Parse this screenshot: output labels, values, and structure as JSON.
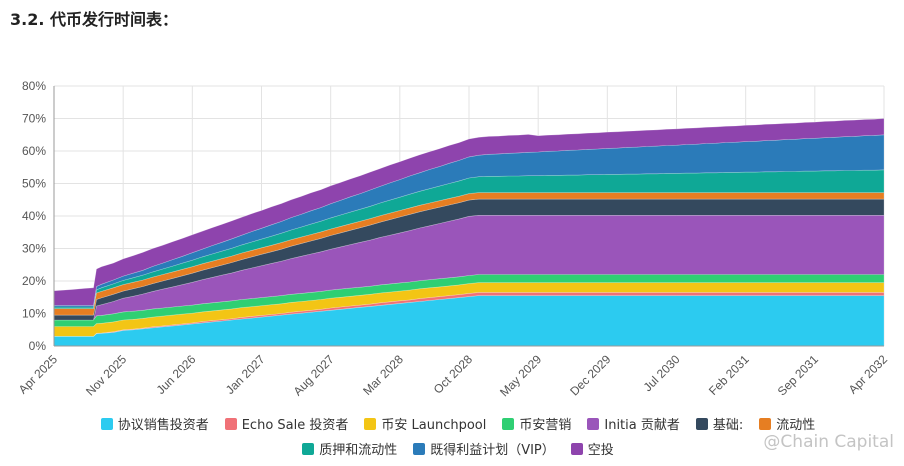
{
  "heading": "3.2. 代币发行时间表：",
  "watermark": "@Chain Capital",
  "colors": {
    "grid": "#e3e3e3",
    "axis": "#9a9a9a"
  },
  "chart_data": {
    "type": "area",
    "stacked": true,
    "x_tick_labels": [
      "Apr 2025",
      "Nov 2025",
      "Jun 2026",
      "Jan 2027",
      "Aug 2027",
      "Mar 2028",
      "Oct 2028",
      "May 2029",
      "Dec 2029",
      "Jul 2030",
      "Feb 2031",
      "Sep 2031",
      "Apr 2032"
    ],
    "y_tick_labels": [
      "0%",
      "10%",
      "20%",
      "30%",
      "40%",
      "50%",
      "60%",
      "70%",
      "80%"
    ],
    "ylim": [
      0,
      80
    ],
    "grid": true,
    "legend_position": "bottom",
    "x": [
      0,
      1,
      2,
      3,
      4,
      4.3,
      4.8,
      6,
      7,
      8,
      9,
      10,
      11,
      12,
      13,
      14,
      15,
      16,
      17,
      18,
      19,
      20,
      21,
      22,
      23,
      24,
      25,
      26,
      27,
      28,
      29,
      30,
      31,
      32,
      33,
      34,
      35,
      36,
      37,
      38,
      39,
      40,
      41,
      42,
      43,
      44,
      45,
      46,
      47,
      48,
      49,
      50,
      51,
      52,
      53,
      54,
      55,
      56,
      57,
      58,
      59,
      60,
      61,
      62,
      63,
      64,
      65,
      66,
      67,
      68,
      69,
      70,
      71,
      72,
      73,
      74,
      75,
      76,
      77,
      78,
      79,
      80,
      81,
      82,
      83,
      84
    ],
    "series": [
      {
        "name": "协议销售投资者",
        "color": "#2ccbf0",
        "values": [
          3.0,
          3.0,
          3.0,
          3.0,
          3.0,
          3.8,
          3.9,
          4.2,
          4.8,
          5.0,
          5.3,
          5.6,
          5.9,
          6.2,
          6.5,
          6.8,
          7.1,
          7.4,
          7.7,
          8.0,
          8.3,
          8.6,
          8.9,
          9.2,
          9.5,
          9.8,
          10.1,
          10.4,
          10.7,
          11.0,
          11.3,
          11.6,
          11.9,
          12.2,
          12.5,
          12.8,
          13.1,
          13.4,
          13.7,
          14.0,
          14.3,
          14.6,
          14.9,
          15.2,
          15.5,
          15.5,
          15.5,
          15.5,
          15.5,
          15.5,
          15.5,
          15.5,
          15.5,
          15.5,
          15.5,
          15.5,
          15.5,
          15.5,
          15.5,
          15.5,
          15.5,
          15.5,
          15.5,
          15.5,
          15.5,
          15.5,
          15.5,
          15.5,
          15.5,
          15.5,
          15.5,
          15.5,
          15.5,
          15.5,
          15.5,
          15.5,
          15.5,
          15.5,
          15.5,
          15.5,
          15.5,
          15.5,
          15.5,
          15.5,
          15.5,
          15.5
        ]
      },
      {
        "name": "Echo Sale 投资者",
        "color": "#f07177",
        "values": [
          0.0,
          0.0,
          0.0,
          0.0,
          0.0,
          0.1,
          0.1,
          0.2,
          0.2,
          0.2,
          0.2,
          0.3,
          0.3,
          0.3,
          0.3,
          0.3,
          0.4,
          0.4,
          0.4,
          0.4,
          0.5,
          0.5,
          0.5,
          0.5,
          0.5,
          0.6,
          0.6,
          0.6,
          0.6,
          0.7,
          0.7,
          0.7,
          0.7,
          0.7,
          0.8,
          0.8,
          0.8,
          0.8,
          0.9,
          0.9,
          0.9,
          0.9,
          0.9,
          1.0,
          1.0,
          1.0,
          1.0,
          1.0,
          1.0,
          1.0,
          1.0,
          1.0,
          1.0,
          1.0,
          1.0,
          1.0,
          1.0,
          1.0,
          1.0,
          1.0,
          1.0,
          1.0,
          1.0,
          1.0,
          1.0,
          1.0,
          1.0,
          1.0,
          1.0,
          1.0,
          1.0,
          1.0,
          1.0,
          1.0,
          1.0,
          1.0,
          1.0,
          1.0,
          1.0,
          1.0,
          1.0,
          1.0,
          1.0,
          1.0,
          1.0,
          1.0
        ]
      },
      {
        "name": "币安 Launchpool",
        "color": "#f3c515",
        "values": [
          3.0,
          3.0,
          3.0,
          3.0,
          3.0,
          3.0,
          3.0,
          3.0,
          3.0,
          3.0,
          3.0,
          3.0,
          3.0,
          3.0,
          3.0,
          3.0,
          3.0,
          3.0,
          3.0,
          3.0,
          3.0,
          3.0,
          3.0,
          3.0,
          3.0,
          3.0,
          3.0,
          3.0,
          3.0,
          3.0,
          3.0,
          3.0,
          3.0,
          3.0,
          3.0,
          3.0,
          3.0,
          3.0,
          3.0,
          3.0,
          3.0,
          3.0,
          3.0,
          3.0,
          3.0,
          3.0,
          3.0,
          3.0,
          3.0,
          3.0,
          3.0,
          3.0,
          3.0,
          3.0,
          3.0,
          3.0,
          3.0,
          3.0,
          3.0,
          3.0,
          3.0,
          3.0,
          3.0,
          3.0,
          3.0,
          3.0,
          3.0,
          3.0,
          3.0,
          3.0,
          3.0,
          3.0,
          3.0,
          3.0,
          3.0,
          3.0,
          3.0,
          3.0,
          3.0,
          3.0,
          3.0,
          3.0,
          3.0,
          3.0,
          3.0,
          3.0
        ]
      },
      {
        "name": "币安营销",
        "color": "#2fcf73",
        "values": [
          2.0,
          2.0,
          2.0,
          2.0,
          2.0,
          2.4,
          2.4,
          2.5,
          2.5,
          2.5,
          2.5,
          2.5,
          2.5,
          2.5,
          2.5,
          2.5,
          2.5,
          2.5,
          2.5,
          2.5,
          2.5,
          2.5,
          2.5,
          2.5,
          2.5,
          2.5,
          2.5,
          2.5,
          2.5,
          2.5,
          2.5,
          2.5,
          2.5,
          2.5,
          2.5,
          2.5,
          2.5,
          2.5,
          2.5,
          2.5,
          2.5,
          2.5,
          2.5,
          2.5,
          2.5,
          2.5,
          2.5,
          2.5,
          2.5,
          2.5,
          2.5,
          2.5,
          2.5,
          2.5,
          2.5,
          2.5,
          2.5,
          2.5,
          2.5,
          2.5,
          2.5,
          2.5,
          2.5,
          2.5,
          2.5,
          2.5,
          2.5,
          2.5,
          2.5,
          2.5,
          2.5,
          2.5,
          2.5,
          2.5,
          2.5,
          2.5,
          2.5,
          2.5,
          2.5,
          2.5,
          2.5,
          2.5,
          2.5,
          2.5,
          2.5,
          2.5
        ]
      },
      {
        "name": "Initia 贡献者",
        "color": "#9a55ba",
        "values": [
          0.0,
          0.0,
          0.0,
          0.0,
          0.0,
          3.0,
          3.3,
          3.8,
          4.2,
          4.6,
          5.0,
          5.4,
          5.8,
          6.2,
          6.6,
          7.0,
          7.4,
          7.8,
          8.2,
          8.6,
          9.0,
          9.4,
          9.8,
          10.2,
          10.6,
          11.0,
          11.4,
          11.8,
          12.2,
          12.6,
          13.0,
          13.4,
          13.8,
          14.2,
          14.6,
          15.0,
          15.4,
          15.8,
          16.2,
          16.6,
          17.0,
          17.4,
          17.8,
          18.2,
          18.2,
          18.2,
          18.2,
          18.2,
          18.2,
          18.2,
          18.2,
          18.2,
          18.2,
          18.2,
          18.2,
          18.2,
          18.2,
          18.2,
          18.2,
          18.2,
          18.2,
          18.2,
          18.2,
          18.2,
          18.2,
          18.2,
          18.2,
          18.2,
          18.2,
          18.2,
          18.2,
          18.2,
          18.2,
          18.2,
          18.2,
          18.2,
          18.2,
          18.2,
          18.2,
          18.2,
          18.2,
          18.2,
          18.2,
          18.2,
          18.2,
          18.2
        ]
      },
      {
        "name": "基础:",
        "color": "#34495e",
        "values": [
          1.5,
          1.5,
          1.5,
          1.5,
          1.5,
          2.0,
          2.1,
          2.2,
          2.2,
          2.3,
          2.3,
          2.4,
          2.5,
          2.6,
          2.7,
          2.8,
          2.9,
          3.0,
          3.1,
          3.2,
          3.3,
          3.4,
          3.5,
          3.6,
          3.7,
          3.8,
          3.9,
          4.0,
          4.1,
          4.2,
          4.3,
          4.4,
          4.5,
          4.6,
          4.7,
          4.8,
          4.9,
          5.0,
          5.0,
          5.0,
          5.0,
          5.0,
          5.0,
          5.0,
          5.0,
          5.0,
          5.0,
          5.0,
          5.0,
          5.0,
          5.0,
          5.0,
          5.0,
          5.0,
          5.0,
          5.0,
          5.0,
          5.0,
          5.0,
          5.0,
          5.0,
          5.0,
          5.0,
          5.0,
          5.0,
          5.0,
          5.0,
          5.0,
          5.0,
          5.0,
          5.0,
          5.0,
          5.0,
          5.0,
          5.0,
          5.0,
          5.0,
          5.0,
          5.0,
          5.0,
          5.0,
          5.0,
          5.0,
          5.0,
          5.0,
          5.0
        ]
      },
      {
        "name": "流动性",
        "color": "#e67e22",
        "values": [
          2.0,
          2.0,
          2.0,
          2.0,
          2.0,
          2.0,
          2.0,
          2.0,
          2.0,
          2.0,
          2.0,
          2.0,
          2.0,
          2.0,
          2.0,
          2.0,
          2.0,
          2.0,
          2.0,
          2.0,
          2.0,
          2.0,
          2.0,
          2.0,
          2.0,
          2.0,
          2.0,
          2.0,
          2.0,
          2.0,
          2.0,
          2.0,
          2.0,
          2.0,
          2.0,
          2.0,
          2.0,
          2.0,
          2.0,
          2.0,
          2.0,
          2.0,
          2.0,
          2.0,
          2.0,
          2.0,
          2.0,
          2.0,
          2.0,
          2.0,
          2.0,
          2.0,
          2.0,
          2.0,
          2.0,
          2.0,
          2.0,
          2.0,
          2.0,
          2.0,
          2.0,
          2.0,
          2.0,
          2.0,
          2.0,
          2.0,
          2.0,
          2.0,
          2.0,
          2.0,
          2.0,
          2.0,
          2.0,
          2.0,
          2.0,
          2.0,
          2.0,
          2.0,
          2.0,
          2.0,
          2.0,
          2.0,
          2.0,
          2.0,
          2.0,
          2.0
        ]
      },
      {
        "name": "质押和流动性",
        "color": "#0fa896",
        "values": [
          0.5,
          0.5,
          0.5,
          0.5,
          0.5,
          1.0,
          1.1,
          1.2,
          1.3,
          1.4,
          1.5,
          1.6,
          1.7,
          1.8,
          1.9,
          2.0,
          2.1,
          2.2,
          2.3,
          2.4,
          2.5,
          2.6,
          2.7,
          2.8,
          2.9,
          3.0,
          3.1,
          3.2,
          3.3,
          3.4,
          3.5,
          3.6,
          3.7,
          3.8,
          3.9,
          4.0,
          4.1,
          4.2,
          4.3,
          4.4,
          4.5,
          4.6,
          4.7,
          4.8,
          4.9,
          5.0,
          5.0,
          5.1,
          5.1,
          5.2,
          5.2,
          5.3,
          5.3,
          5.4,
          5.4,
          5.5,
          5.5,
          5.6,
          5.6,
          5.7,
          5.7,
          5.8,
          5.8,
          5.9,
          5.9,
          6.0,
          6.0,
          6.1,
          6.1,
          6.2,
          6.2,
          6.3,
          6.3,
          6.4,
          6.4,
          6.5,
          6.5,
          6.6,
          6.6,
          6.7,
          6.7,
          6.8,
          6.8,
          6.9,
          6.9,
          7.0
        ]
      },
      {
        "name": "既得利益计划（VIP）",
        "color": "#2b7bb9",
        "values": [
          0.5,
          0.5,
          0.5,
          0.5,
          0.5,
          1.0,
          1.1,
          1.2,
          1.3,
          1.4,
          1.5,
          1.7,
          1.8,
          2.0,
          2.1,
          2.3,
          2.4,
          2.6,
          2.7,
          2.9,
          3.0,
          3.2,
          3.3,
          3.5,
          3.6,
          3.8,
          3.9,
          4.1,
          4.2,
          4.4,
          4.5,
          4.7,
          4.8,
          5.0,
          5.1,
          5.3,
          5.4,
          5.6,
          5.7,
          5.9,
          6.0,
          6.2,
          6.3,
          6.5,
          6.6,
          6.8,
          6.9,
          7.0,
          7.1,
          7.2,
          7.3,
          7.4,
          7.5,
          7.6,
          7.7,
          7.8,
          7.9,
          8.0,
          8.1,
          8.2,
          8.3,
          8.4,
          8.5,
          8.6,
          8.7,
          8.8,
          8.9,
          9.0,
          9.1,
          9.2,
          9.3,
          9.4,
          9.5,
          9.6,
          9.7,
          9.8,
          9.9,
          10.0,
          10.1,
          10.2,
          10.3,
          10.4,
          10.5,
          10.6,
          10.7,
          10.8
        ]
      },
      {
        "name": "空投",
        "color": "#8e44ad",
        "values": [
          4.5,
          4.7,
          4.9,
          5.2,
          5.4,
          5.4,
          5.4,
          5.2,
          5.3,
          5.4,
          5.5,
          5.5,
          5.5,
          5.5,
          5.5,
          5.5,
          5.5,
          5.5,
          5.5,
          5.5,
          5.5,
          5.5,
          5.5,
          5.5,
          5.5,
          5.5,
          5.5,
          5.5,
          5.5,
          5.5,
          5.5,
          5.5,
          5.5,
          5.5,
          5.5,
          5.5,
          5.5,
          5.5,
          5.5,
          5.5,
          5.5,
          5.5,
          5.5,
          5.5,
          5.5,
          5.5,
          5.5,
          5.5,
          5.5,
          5.5,
          5.0,
          5.0,
          5.0,
          5.0,
          5.0,
          5.0,
          5.0,
          5.0,
          5.0,
          5.0,
          5.0,
          5.0,
          5.0,
          5.0,
          5.0,
          5.0,
          5.0,
          5.0,
          5.0,
          5.0,
          5.0,
          5.0,
          5.0,
          5.0,
          5.0,
          5.0,
          5.0,
          5.0,
          5.0,
          5.0,
          5.0,
          5.0,
          5.0,
          5.0,
          5.0,
          5.0
        ]
      }
    ]
  }
}
